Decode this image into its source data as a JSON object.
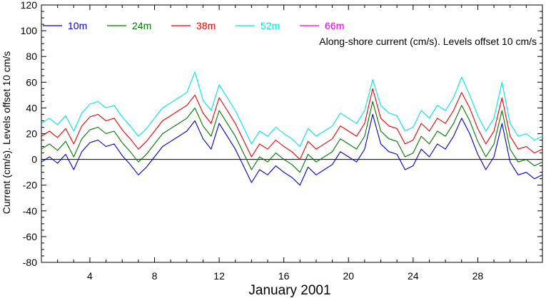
{
  "chart_data": {
    "type": "line",
    "title": "",
    "annotation": "Along-shore current (cm/s). Levels offset 10 cm/s",
    "xlabel": "January 2001",
    "ylabel": "Current (cm/s). Levels offset 10 cm/s",
    "xlim": [
      1,
      32
    ],
    "ylim": [
      -80,
      120
    ],
    "x_ticks": [
      4,
      8,
      12,
      16,
      20,
      24,
      28
    ],
    "y_ticks": [
      -80,
      -60,
      -40,
      -20,
      0,
      20,
      40,
      60,
      80,
      100,
      120
    ],
    "zero_line": 0,
    "legend_position": "top-left",
    "series": [
      {
        "name": "10m",
        "color": "#0000cc",
        "offset": 0,
        "x": [
          1,
          1.5,
          2,
          2.5,
          3,
          3.5,
          4,
          4.5,
          5,
          5.5,
          6,
          6.5,
          7,
          7.5,
          8,
          8.5,
          9,
          9.5,
          10,
          10.5,
          11,
          11.5,
          12,
          12.5,
          13,
          13.5,
          14,
          14.5,
          15,
          15.5,
          16,
          16.5,
          17,
          17.5,
          18,
          18.5,
          19,
          19.5,
          20,
          20.5,
          21,
          21.5,
          22,
          22.5,
          23,
          23.5,
          24,
          24.5,
          25,
          25.5,
          26,
          26.5,
          27,
          27.5,
          28,
          28.5,
          29,
          29.5,
          30,
          30.5,
          31,
          31.5,
          32
        ],
        "values": [
          -2,
          2,
          -3,
          4,
          -8,
          6,
          13,
          15,
          10,
          12,
          3,
          -4,
          -12,
          -6,
          2,
          10,
          14,
          18,
          22,
          30,
          16,
          8,
          28,
          18,
          8,
          -5,
          -18,
          -8,
          -12,
          -5,
          -10,
          -14,
          -20,
          -6,
          -12,
          -8,
          -4,
          6,
          2,
          -2,
          8,
          35,
          12,
          6,
          4,
          -8,
          -5,
          8,
          2,
          12,
          8,
          18,
          32,
          20,
          4,
          -8,
          2,
          28,
          -2,
          -12,
          -10,
          -15,
          -12
        ]
      },
      {
        "name": "24m",
        "color": "#007700",
        "offset": 10,
        "x": [
          1,
          1.5,
          2,
          2.5,
          3,
          3.5,
          4,
          4.5,
          5,
          5.5,
          6,
          6.5,
          7,
          7.5,
          8,
          8.5,
          9,
          9.5,
          10,
          10.5,
          11,
          11.5,
          12,
          12.5,
          13,
          13.5,
          14,
          14.5,
          15,
          15.5,
          16,
          16.5,
          17,
          17.5,
          18,
          18.5,
          19,
          19.5,
          20,
          20.5,
          21,
          21.5,
          22,
          22.5,
          23,
          23.5,
          24,
          24.5,
          25,
          25.5,
          26,
          26.5,
          27,
          27.5,
          28,
          28.5,
          29,
          29.5,
          30,
          30.5,
          31,
          31.5,
          32
        ],
        "values": [
          8,
          12,
          7,
          14,
          2,
          16,
          23,
          25,
          20,
          22,
          13,
          6,
          -2,
          4,
          12,
          20,
          24,
          28,
          32,
          40,
          26,
          18,
          38,
          28,
          18,
          5,
          -8,
          2,
          -2,
          5,
          0,
          -4,
          -10,
          4,
          -2,
          2,
          6,
          16,
          12,
          8,
          18,
          45,
          22,
          16,
          14,
          2,
          5,
          18,
          12,
          22,
          18,
          28,
          42,
          30,
          14,
          2,
          12,
          38,
          8,
          -2,
          0,
          -5,
          -2
        ]
      },
      {
        "name": "38m",
        "color": "#ee0000",
        "offset": 20,
        "x": [
          1,
          1.5,
          2,
          2.5,
          3,
          3.5,
          4,
          4.5,
          5,
          5.5,
          6,
          6.5,
          7,
          7.5,
          8,
          8.5,
          9,
          9.5,
          10,
          10.5,
          11,
          11.5,
          12,
          12.5,
          13,
          13.5,
          14,
          14.5,
          15,
          15.5,
          16,
          16.5,
          17,
          17.5,
          18,
          18.5,
          19,
          19.5,
          20,
          20.5,
          21,
          21.5,
          22,
          22.5,
          23,
          23.5,
          24,
          24.5,
          25,
          25.5,
          26,
          26.5,
          27,
          27.5,
          28,
          28.5,
          29,
          29.5,
          30,
          30.5,
          31,
          31.5,
          32
        ],
        "values": [
          18,
          22,
          17,
          24,
          12,
          26,
          33,
          35,
          30,
          32,
          23,
          16,
          8,
          14,
          22,
          30,
          34,
          38,
          42,
          50,
          36,
          28,
          48,
          38,
          28,
          15,
          2,
          12,
          8,
          15,
          10,
          6,
          0,
          14,
          8,
          12,
          16,
          26,
          22,
          18,
          28,
          55,
          32,
          26,
          24,
          12,
          15,
          28,
          22,
          32,
          28,
          38,
          52,
          40,
          24,
          12,
          22,
          48,
          18,
          8,
          10,
          5,
          8
        ]
      },
      {
        "name": "52m",
        "color": "#00e5e5",
        "offset": 30,
        "x": [
          1,
          1.5,
          2,
          2.5,
          3,
          3.5,
          4,
          4.5,
          5,
          5.5,
          6,
          6.5,
          7,
          7.5,
          8,
          8.5,
          9,
          9.5,
          10,
          10.5,
          11,
          11.5,
          12,
          12.5,
          13,
          13.5,
          14,
          14.5,
          15,
          15.5,
          16,
          16.5,
          17,
          17.5,
          18,
          18.5,
          19,
          19.5,
          20,
          20.5,
          21,
          21.5,
          22,
          22.5,
          23,
          23.5,
          24,
          24.5,
          25,
          25.5,
          26,
          26.5,
          27,
          27.5,
          28,
          28.5,
          29,
          29.5,
          30,
          30.5,
          31,
          31.5,
          32
        ],
        "values": [
          28,
          32,
          27,
          34,
          22,
          36,
          43,
          45,
          40,
          42,
          33,
          26,
          18,
          24,
          32,
          40,
          44,
          48,
          52,
          68,
          46,
          38,
          58,
          48,
          38,
          25,
          12,
          22,
          18,
          25,
          20,
          16,
          10,
          24,
          18,
          22,
          26,
          36,
          32,
          28,
          38,
          62,
          42,
          36,
          34,
          22,
          25,
          38,
          32,
          42,
          38,
          48,
          64,
          50,
          34,
          22,
          32,
          60,
          28,
          18,
          20,
          15,
          18
        ]
      },
      {
        "name": "66m",
        "color": "#ee00ee",
        "offset": 40,
        "x": [],
        "values": []
      }
    ]
  }
}
